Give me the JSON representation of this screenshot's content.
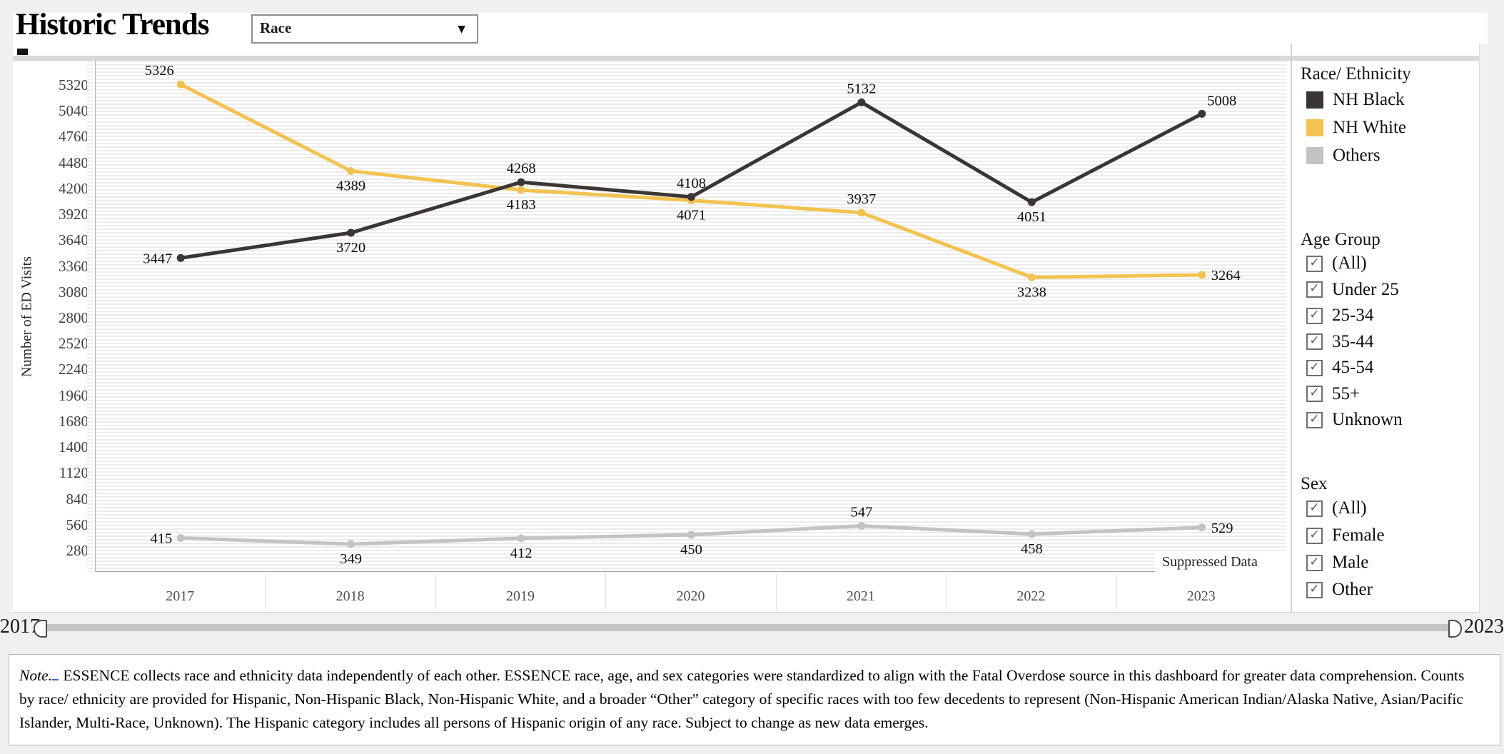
{
  "header": {
    "title": "Historic Trends",
    "dropdown_value": "Race",
    "dropdown_arrow": "▼"
  },
  "chart_data": {
    "type": "line",
    "ylabel": "Number of ED Visits",
    "x_years": [
      "2017",
      "2018",
      "2019",
      "2020",
      "2021",
      "2022",
      "2023"
    ],
    "y_ticks": [
      280,
      560,
      840,
      1120,
      1400,
      1680,
      1960,
      2240,
      2520,
      2800,
      3080,
      3360,
      3640,
      3920,
      4200,
      4480,
      4760,
      5040,
      5320
    ],
    "ylim": [
      48,
      5583
    ],
    "grid": "horizontal-bands",
    "legend_position": "right",
    "series": [
      {
        "name": "Others",
        "color": "#C3C3C3",
        "values": [
          415,
          349,
          412,
          450,
          547,
          458,
          529
        ],
        "label_pos": [
          "left",
          "below",
          "below",
          "below",
          "above",
          "below",
          "right"
        ]
      },
      {
        "name": "NH White",
        "color": "#F2C350",
        "values": [
          5326,
          4389,
          4183,
          4071,
          3937,
          3238,
          3264
        ],
        "label_pos": [
          "above-left",
          "below",
          "below",
          "below",
          "above",
          "below",
          "right"
        ]
      },
      {
        "name": "NH Black",
        "color": "#3B3534",
        "values": [
          3447,
          3720,
          4268,
          4108,
          5132,
          4051,
          5008
        ],
        "label_pos": [
          "left",
          "below",
          "above",
          "above",
          "above",
          "below",
          "above-right"
        ]
      }
    ],
    "suppressed_note": "Suppressed Data"
  },
  "legend": {
    "title": "Race/ Ethnicity",
    "items": [
      {
        "label": "NH Black",
        "color": "#3B3534"
      },
      {
        "label": "NH White",
        "color": "#F2C350"
      },
      {
        "label": "Others",
        "color": "#C3C3C3"
      }
    ]
  },
  "filters": [
    {
      "title": "Age Group",
      "options": [
        "(All)",
        "Under 25",
        "25-34",
        "35-44",
        "45-54",
        "55+",
        "Unknown"
      ],
      "all_checked": true
    },
    {
      "title": "Sex",
      "options": [
        "(All)",
        "Female",
        "Male",
        "Other"
      ],
      "all_checked": true
    }
  ],
  "slider": {
    "start_label": "2017",
    "end_label": "2023"
  },
  "note": {
    "prefix": "Note.",
    "body": " ESSENCE collects race and ethnicity data independently of each other. ESSENCE race, age, and sex categories were standardized to align with the Fatal Overdose source in this dashboard for greater data comprehension. Counts by race/ ethnicity are provided for Hispanic, Non-Hispanic Black, Non-Hispanic White, and a broader “Other” category of specific races with too few decedents to represent (Non-Hispanic American Indian/Alaska Native, Asian/Pacific Islander, Multi-Race, Unknown). The Hispanic category includes all persons of Hispanic origin of any race. Subject to change as new data emerges."
  }
}
